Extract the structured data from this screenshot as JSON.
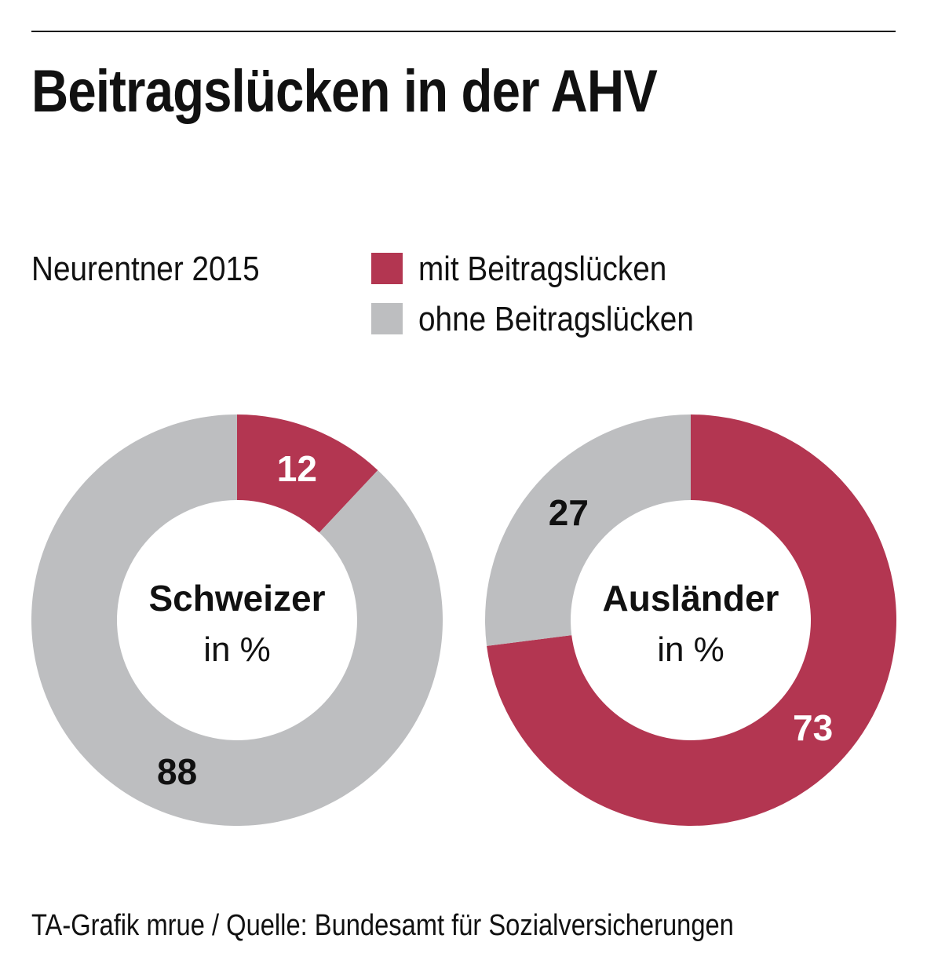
{
  "title": "Beitragslücken in der AHV",
  "subtitle": "Neurentner 2015",
  "legend": [
    {
      "label": "mit Beitragslücken",
      "color": "#B33651"
    },
    {
      "label": "ohne Beitragslücken",
      "color": "#BDBEC0"
    }
  ],
  "footer": "TA-Grafik mrue / Quelle: Bundesamt für Sozialversicherungen",
  "chart_data": [
    {
      "type": "pie",
      "donut": true,
      "center_title": "Schweizer",
      "center_subtitle": "in %",
      "slices": [
        {
          "series": "mit Beitragslücken",
          "value": 12,
          "label": "12",
          "color": "#B33651",
          "label_color": "#ffffff"
        },
        {
          "series": "ohne Beitragslücken",
          "value": 88,
          "label": "88",
          "color": "#BDBEC0",
          "label_color": "#111111"
        }
      ]
    },
    {
      "type": "pie",
      "donut": true,
      "center_title": "Ausländer",
      "center_subtitle": "in %",
      "slices": [
        {
          "series": "mit Beitragslücken",
          "value": 73,
          "label": "73",
          "color": "#B33651",
          "label_color": "#ffffff"
        },
        {
          "series": "ohne Beitragslücken",
          "value": 27,
          "label": "27",
          "color": "#BDBEC0",
          "label_color": "#111111"
        }
      ]
    }
  ]
}
